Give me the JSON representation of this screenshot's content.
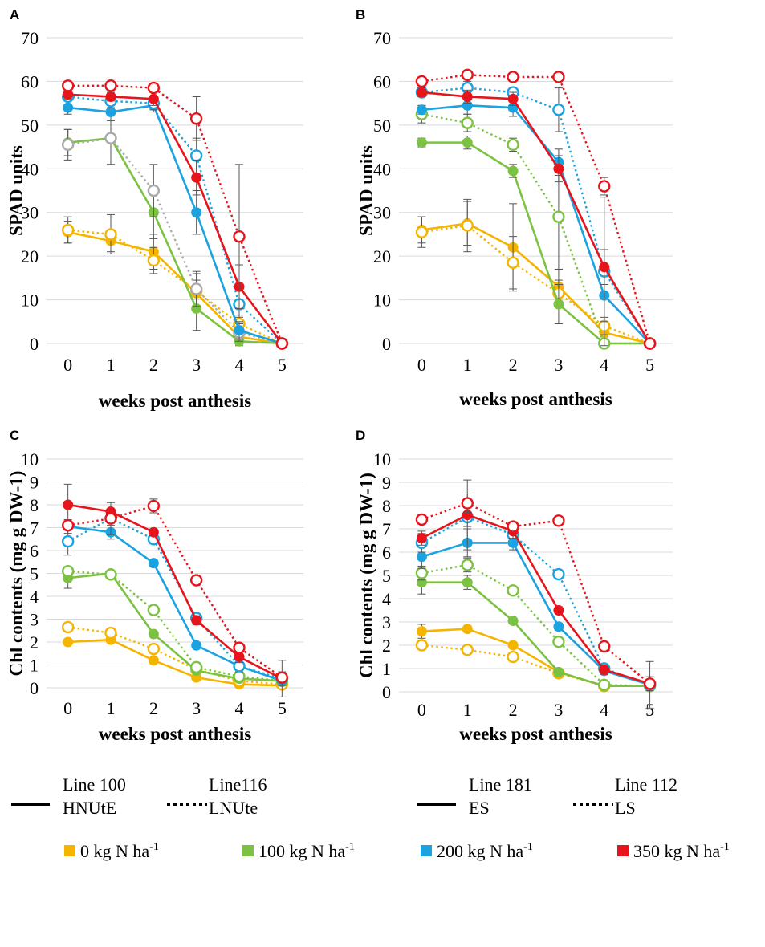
{
  "colors": {
    "0 kg N ha-1": "#f5b400",
    "100 kg N ha-1": "#7cc242",
    "200 kg N ha-1": "#1aa3e0",
    "350 kg N ha-1": "#e8141c",
    "grey": "#aaaaaa",
    "grid": "#d9d9d9"
  },
  "chart_data": [
    {
      "type": "line",
      "panel": "A",
      "xlabel": "weeks post anthesis",
      "ylabel": "SPAD units",
      "x": [
        0,
        1,
        2,
        3,
        4,
        5
      ],
      "xlim": [
        0,
        5
      ],
      "ylim": [
        0,
        70
      ],
      "yticks": [
        0,
        10,
        20,
        30,
        40,
        50,
        60,
        70
      ],
      "grid": true,
      "series": [
        {
          "line": "solid",
          "color": "0 kg N ha-1",
          "values": [
            25.5,
            23.5,
            21,
            11.5,
            1.5,
            0
          ],
          "err": [
            2.5,
            2.5,
            4,
            3,
            1,
            0
          ]
        },
        {
          "line": "dotted",
          "color": "0 kg N ha-1",
          "values": [
            26,
            25,
            19,
            12,
            4.5,
            0
          ],
          "err": [
            3,
            4.5,
            3,
            4,
            2,
            0
          ]
        },
        {
          "line": "solid",
          "color": "100 kg N ha-1",
          "values": [
            46,
            47,
            30,
            8,
            0.5,
            0
          ],
          "err": [
            3,
            6,
            6,
            5,
            1,
            0
          ]
        },
        {
          "line": "dotted",
          "color": "grey",
          "values": [
            45.5,
            47,
            35,
            12.5,
            2.5,
            0
          ],
          "err": [
            3.5,
            6,
            6,
            4,
            2,
            0
          ]
        },
        {
          "line": "solid",
          "color": "200 kg N ha-1",
          "values": [
            54,
            53,
            54.5,
            30,
            3,
            0
          ],
          "err": [
            1.5,
            2,
            1.5,
            5,
            2,
            0
          ]
        },
        {
          "line": "dotted",
          "color": "200 kg N ha-1",
          "values": [
            56.5,
            55.5,
            55,
            43,
            9,
            0
          ],
          "err": [
            1,
            1.5,
            1.5,
            4,
            3,
            0
          ]
        },
        {
          "line": "solid",
          "color": "350 kg N ha-1",
          "values": [
            57,
            56.5,
            56,
            38,
            13,
            0
          ],
          "err": [
            1,
            1,
            1.5,
            4,
            5,
            0
          ]
        },
        {
          "line": "dotted",
          "color": "350 kg N ha-1",
          "values": [
            59,
            59,
            58.5,
            51.5,
            24.5,
            0
          ],
          "err": [
            1,
            1.5,
            1,
            5,
            16.5,
            0
          ]
        }
      ]
    },
    {
      "type": "line",
      "panel": "B",
      "xlabel": "weeks post anthesis",
      "ylabel": "SPAD units",
      "x": [
        0,
        1,
        2,
        3,
        4,
        5
      ],
      "xlim": [
        0,
        5
      ],
      "ylim": [
        0,
        70
      ],
      "yticks": [
        0,
        10,
        20,
        30,
        40,
        50,
        60,
        70
      ],
      "grid": true,
      "series": [
        {
          "line": "solid",
          "color": "0 kg N ha-1",
          "values": [
            26,
            27.5,
            22,
            13,
            2.5,
            0
          ],
          "err": [
            3,
            5,
            10,
            4,
            1,
            0
          ]
        },
        {
          "line": "dotted",
          "color": "0 kg N ha-1",
          "values": [
            25.5,
            27,
            18.5,
            11.5,
            4,
            0
          ],
          "err": [
            3.5,
            6,
            6,
            3,
            2,
            0
          ]
        },
        {
          "line": "solid",
          "color": "100 kg N ha-1",
          "values": [
            46,
            46,
            39.5,
            9,
            0,
            0
          ],
          "err": [
            1,
            1.5,
            1.5,
            4.5,
            0,
            0
          ]
        },
        {
          "line": "dotted",
          "color": "100 kg N ha-1",
          "values": [
            52.5,
            50.5,
            45.5,
            29,
            0,
            0
          ],
          "err": [
            2,
            2,
            1.5,
            12,
            0,
            0
          ]
        },
        {
          "line": "solid",
          "color": "200 kg N ha-1",
          "values": [
            53.5,
            54.5,
            54,
            41.5,
            11,
            0
          ],
          "err": [
            1,
            2,
            2,
            3,
            6,
            0
          ]
        },
        {
          "line": "dotted",
          "color": "200 kg N ha-1",
          "values": [
            57.5,
            58.5,
            57.5,
            53.5,
            16.5,
            0
          ],
          "err": [
            1,
            1.5,
            1,
            5,
            17,
            0
          ]
        },
        {
          "line": "solid",
          "color": "350 kg N ha-1",
          "values": [
            57.5,
            56.5,
            56,
            40,
            17.5,
            0
          ],
          "err": [
            1,
            1.5,
            1.5,
            3,
            4,
            0
          ]
        },
        {
          "line": "dotted",
          "color": "350 kg N ha-1",
          "values": [
            60,
            61.5,
            61,
            61,
            36,
            0
          ],
          "err": [
            0.5,
            1,
            1,
            1,
            2,
            0
          ]
        }
      ]
    },
    {
      "type": "line",
      "panel": "C",
      "xlabel": "weeks post anthesis",
      "ylabel": "Chl contents (mg g DW-1)",
      "x": [
        0,
        1,
        2,
        3,
        4,
        5
      ],
      "xlim": [
        0,
        5
      ],
      "ylim": [
        0,
        10
      ],
      "yticks": [
        0,
        1,
        2,
        3,
        4,
        5,
        6,
        7,
        8,
        9,
        10
      ],
      "grid": true,
      "series": [
        {
          "line": "solid",
          "color": "0 kg N ha-1",
          "values": [
            2.0,
            2.1,
            1.2,
            0.45,
            0.15,
            0.1
          ],
          "err": [
            0.1,
            0.1,
            0.1,
            0.1,
            0.05,
            0.05
          ]
        },
        {
          "line": "dotted",
          "color": "0 kg N ha-1",
          "values": [
            2.65,
            2.4,
            1.7,
            0.8,
            0.3,
            0.15
          ],
          "err": [
            0.1,
            0.1,
            0.15,
            0.1,
            0.05,
            0.05
          ]
        },
        {
          "line": "solid",
          "color": "100 kg N ha-1",
          "values": [
            4.8,
            5.0,
            2.35,
            0.75,
            0.4,
            0.3
          ],
          "err": [
            0.45,
            0.1,
            0.1,
            0.1,
            0.1,
            0.05
          ]
        },
        {
          "line": "dotted",
          "color": "100 kg N ha-1",
          "values": [
            5.1,
            4.95,
            3.4,
            0.9,
            0.5,
            0.3
          ],
          "err": [
            0.2,
            0.1,
            0.15,
            0.1,
            0.1,
            0.1
          ]
        },
        {
          "line": "solid",
          "color": "200 kg N ha-1",
          "values": [
            7.05,
            6.8,
            5.45,
            1.85,
            0.95,
            0.3
          ],
          "err": [
            0.3,
            0.3,
            0.15,
            0.1,
            0.1,
            0.1
          ]
        },
        {
          "line": "dotted",
          "color": "200 kg N ha-1",
          "values": [
            6.4,
            7.4,
            6.5,
            3.05,
            0.95,
            0.4
          ],
          "err": [
            0.6,
            0.7,
            0.2,
            0.15,
            0.25,
            0.3
          ]
        },
        {
          "line": "solid",
          "color": "350 kg N ha-1",
          "values": [
            8.0,
            7.7,
            6.8,
            2.95,
            1.35,
            0.4
          ],
          "err": [
            0.9,
            0.4,
            0.15,
            0.2,
            0.25,
            0.8
          ]
        },
        {
          "line": "dotted",
          "color": "350 kg N ha-1",
          "values": [
            7.1,
            7.4,
            7.95,
            4.7,
            1.75,
            0.45
          ],
          "err": [
            0.2,
            0.2,
            0.3,
            0.1,
            0.1,
            0.2
          ]
        }
      ]
    },
    {
      "type": "line",
      "panel": "D",
      "xlabel": "weeks post anthesis",
      "ylabel": "Chl contents (mg g DW-1)",
      "x": [
        0,
        1,
        2,
        3,
        4,
        5
      ],
      "xlim": [
        0,
        5
      ],
      "ylim": [
        0,
        10
      ],
      "yticks": [
        0,
        1,
        2,
        3,
        4,
        5,
        6,
        7,
        8,
        9,
        10
      ],
      "grid": true,
      "series": [
        {
          "line": "solid",
          "color": "0 kg N ha-1",
          "values": [
            2.6,
            2.7,
            2.0,
            0.85,
            0.25,
            0.25
          ],
          "err": [
            0.3,
            0.1,
            0.1,
            0.05,
            0.05,
            0.05
          ]
        },
        {
          "line": "dotted",
          "color": "0 kg N ha-1",
          "values": [
            2.0,
            1.8,
            1.5,
            0.8,
            0.25,
            0.25
          ],
          "err": [
            0.1,
            0.1,
            0.1,
            0.05,
            0.05,
            0.05
          ]
        },
        {
          "line": "solid",
          "color": "100 kg N ha-1",
          "values": [
            4.7,
            4.7,
            3.05,
            0.85,
            0.25,
            0.25
          ],
          "err": [
            0.5,
            0.3,
            0.1,
            0.05,
            0.05,
            0.05
          ]
        },
        {
          "line": "dotted",
          "color": "100 kg N ha-1",
          "values": [
            5.1,
            5.45,
            4.35,
            2.15,
            0.3,
            0.25
          ],
          "err": [
            0.3,
            0.3,
            0.15,
            0.1,
            0.05,
            0.05
          ]
        },
        {
          "line": "solid",
          "color": "200 kg N ha-1",
          "values": [
            5.8,
            6.4,
            6.4,
            2.8,
            0.9,
            0.3
          ],
          "err": [
            0.5,
            0.6,
            0.3,
            0.15,
            0.15,
            0.1
          ]
        },
        {
          "line": "dotted",
          "color": "200 kg N ha-1",
          "values": [
            6.4,
            7.5,
            6.75,
            5.05,
            1.0,
            0.3
          ],
          "err": [
            0.4,
            0.4,
            0.2,
            0.15,
            0.2,
            1.0
          ]
        },
        {
          "line": "solid",
          "color": "350 kg N ha-1",
          "values": [
            6.6,
            7.6,
            6.9,
            3.5,
            0.95,
            0.35
          ],
          "err": [
            0.3,
            1.5,
            0.3,
            0.15,
            0.2,
            0.3
          ]
        },
        {
          "line": "dotted",
          "color": "350 kg N ha-1",
          "values": [
            7.4,
            8.1,
            7.1,
            7.35,
            1.95,
            0.35
          ],
          "err": [
            0.2,
            0.4,
            0.2,
            0.15,
            0.1,
            0.1
          ]
        }
      ]
    }
  ],
  "legend": {
    "line_groups": [
      {
        "solid_line_name": "Line 100",
        "solid_line_sub": "HNUtE",
        "dotted_line_name": "Line116",
        "dotted_line_sub": "LNUte"
      },
      {
        "solid_line_name": "Line 181",
        "solid_line_sub": "ES",
        "dotted_line_name": "Line 112",
        "dotted_line_sub": "LS"
      }
    ],
    "colors": [
      {
        "color": "0 kg N ha-1",
        "text": "0 kg N ha",
        "sup": "-1"
      },
      {
        "color": "100 kg N ha-1",
        "text": "100 kg N ha",
        "sup": "-1"
      },
      {
        "color": "200 kg N ha-1",
        "text": "200 kg N ha",
        "sup": "-1"
      },
      {
        "color": "350 kg N ha-1",
        "text": "350 kg N ha",
        "sup": "-1"
      }
    ]
  }
}
